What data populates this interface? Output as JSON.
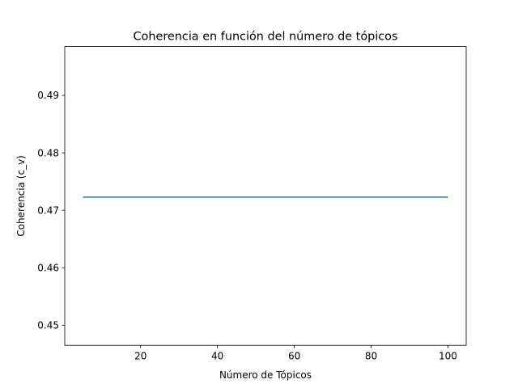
{
  "chart_data": {
    "type": "line",
    "title": "Coherencia en función del número de tópicos",
    "xlabel": "Número de Tópicos",
    "ylabel": "Coherencia (c_v)",
    "xlim": [
      0.25,
      104.75
    ],
    "ylim": [
      0.4465,
      0.4985
    ],
    "xticks": [
      20,
      40,
      60,
      80,
      100
    ],
    "yticks": [
      0.45,
      0.46,
      0.47,
      0.48,
      0.49
    ],
    "xtick_labels": [
      "20",
      "40",
      "60",
      "80",
      "100"
    ],
    "ytick_labels": [
      "0.45",
      "0.46",
      "0.47",
      "0.48",
      "0.49"
    ],
    "grid": false,
    "legend": "none",
    "series": [
      {
        "color": "#1f77b4",
        "x": [
          5,
          100
        ],
        "y": [
          0.4723,
          0.4723
        ]
      }
    ]
  }
}
